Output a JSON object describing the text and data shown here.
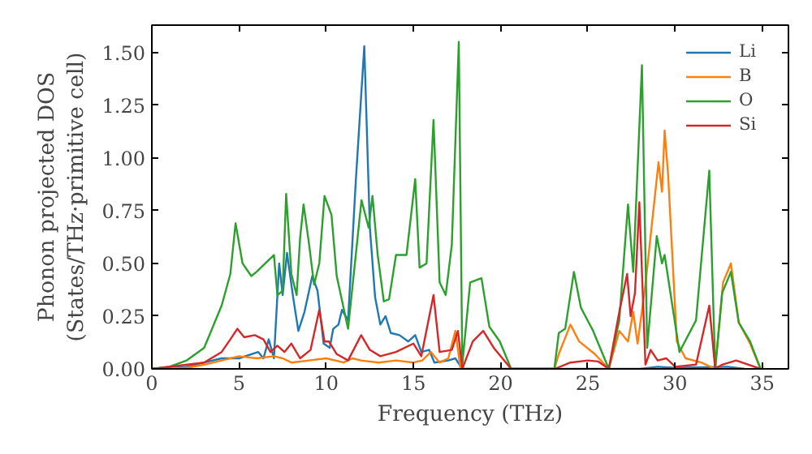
{
  "chart_data": {
    "type": "line",
    "xlabel": "Frequency (THz)",
    "ylabel": "Phonon projected DOS\n(States/THz·primitive cell)",
    "xlim": [
      0,
      36.5
    ],
    "ylim": [
      0,
      1.63
    ],
    "xticks": [
      0,
      5,
      10,
      15,
      20,
      25,
      30,
      35
    ],
    "yticks": [
      {
        "value": 0,
        "label": "0.00"
      },
      {
        "value": 0.25,
        "label": "0.25"
      },
      {
        "value": 0.5,
        "label": "0.50"
      },
      {
        "value": 0.75,
        "label": "0.75"
      },
      {
        "value": 1.0,
        "label": "1.00"
      },
      {
        "value": 1.25,
        "label": "1.25"
      },
      {
        "value": 1.5,
        "label": "1.50"
      }
    ],
    "legend": "top right",
    "grid": false,
    "line_style": "solid",
    "marker": "none",
    "series": [
      {
        "name": "Li",
        "color": "#1f77b4",
        "x": [
          0,
          2,
          3,
          4,
          5,
          6.1,
          6.4,
          6.7,
          7.0,
          7.3,
          7.5,
          7.75,
          8.1,
          8.4,
          8.75,
          9.2,
          9.5,
          9.85,
          10.2,
          10.4,
          10.7,
          10.9,
          11.25,
          11.7,
          12.18,
          12.5,
          12.8,
          13.1,
          13.4,
          13.7,
          14.2,
          14.7,
          15.1,
          15.45,
          15.9,
          16.2,
          17.0,
          17.4,
          17.8,
          28,
          29,
          30,
          33,
          34
        ],
        "values": [
          0,
          0.01,
          0.03,
          0.05,
          0.05,
          0.08,
          0.05,
          0.14,
          0.05,
          0.5,
          0.35,
          0.55,
          0.34,
          0.18,
          0.27,
          0.44,
          0.37,
          0.12,
          0.1,
          0.19,
          0.21,
          0.28,
          0.23,
          0.9,
          1.53,
          0.67,
          0.34,
          0.21,
          0.25,
          0.17,
          0.16,
          0.13,
          0.16,
          0.08,
          0.09,
          0.03,
          0.04,
          0.05,
          0,
          0,
          0.01,
          0.005,
          0.01,
          0
        ]
      },
      {
        "name": "B",
        "color": "#ff7f0e",
        "x": [
          0,
          2,
          3,
          4,
          5,
          6,
          7,
          7.5,
          8,
          9,
          10,
          11,
          11.5,
          12,
          13,
          14,
          15,
          15.5,
          16,
          16.5,
          17,
          17.4,
          17.7,
          23.08,
          23.33,
          24.0,
          24.5,
          25.4,
          26.2,
          26.8,
          27.3,
          27.6,
          27.85,
          28.3,
          29.05,
          29.25,
          29.4,
          29.6,
          30.1,
          30.6,
          31.5,
          32.3,
          32.75,
          33.2,
          33.65,
          34.3,
          34.9
        ],
        "values": [
          0,
          0.005,
          0.02,
          0.04,
          0.06,
          0.05,
          0.06,
          0.05,
          0.03,
          0.04,
          0.05,
          0.03,
          0.05,
          0.04,
          0.03,
          0.04,
          0.03,
          0.04,
          0.08,
          0.03,
          0.05,
          0.18,
          0,
          0,
          0.07,
          0.21,
          0.13,
          0.07,
          0,
          0.18,
          0.13,
          0.27,
          0.12,
          0.4,
          0.98,
          0.84,
          1.13,
          0.92,
          0.13,
          0.05,
          0.03,
          0,
          0.41,
          0.5,
          0.22,
          0.12,
          0
        ]
      },
      {
        "name": "O",
        "color": "#2ca02c",
        "x": [
          0,
          1,
          2,
          3,
          3.5,
          4,
          4.5,
          4.8,
          5.2,
          5.7,
          6,
          6.5,
          7,
          7.2,
          7.5,
          7.7,
          8,
          8.3,
          8.5,
          8.7,
          9,
          9.3,
          9.6,
          9.9,
          10.3,
          10.6,
          11.25,
          12.02,
          12.43,
          12.65,
          12.95,
          13.3,
          13.6,
          14.0,
          14.6,
          15.1,
          15.35,
          15.75,
          16.15,
          16.5,
          16.85,
          17.2,
          17.6,
          17.8,
          18.25,
          18.9,
          19.35,
          19.95,
          20.6,
          23.08,
          23.33,
          23.7,
          24.2,
          24.6,
          25.3,
          26.2,
          26.8,
          27.3,
          27.6,
          28.1,
          28.4,
          28.95,
          29.25,
          29.4,
          30.25,
          31.2,
          31.96,
          32.3,
          32.7,
          33.2,
          33.65,
          34.3,
          34.9
        ],
        "values": [
          0,
          0.01,
          0.04,
          0.1,
          0.2,
          0.3,
          0.45,
          0.69,
          0.5,
          0.44,
          0.46,
          0.5,
          0.54,
          0.35,
          0.37,
          0.83,
          0.45,
          0.35,
          0.62,
          0.78,
          0.6,
          0.4,
          0.5,
          0.82,
          0.73,
          0.44,
          0.19,
          0.8,
          0.67,
          0.82,
          0.54,
          0.32,
          0.33,
          0.54,
          0.54,
          0.9,
          0.48,
          0.5,
          1.18,
          0.41,
          0.35,
          0.59,
          1.55,
          0.02,
          0.41,
          0.43,
          0.2,
          0.13,
          0,
          0,
          0.17,
          0.19,
          0.46,
          0.29,
          0.18,
          0,
          0.23,
          0.78,
          0.46,
          1.44,
          0.1,
          0.63,
          0.5,
          0.54,
          0.08,
          0.23,
          0.94,
          0,
          0.36,
          0.46,
          0.22,
          0.13,
          0
        ]
      },
      {
        "name": "Si",
        "color": "#d62728",
        "x": [
          0,
          3,
          4,
          4.5,
          4.9,
          5.3,
          5.9,
          6.4,
          6.8,
          7.2,
          7.6,
          8.0,
          8.5,
          9.1,
          9.6,
          9.9,
          10.15,
          10.6,
          11.25,
          12.0,
          12.5,
          13.1,
          14.0,
          15.0,
          15.45,
          16.15,
          16.5,
          17.2,
          17.55,
          17.8,
          18.4,
          19.0,
          19.6,
          20.6,
          23.1,
          24,
          25,
          25.6,
          26.2,
          26.8,
          27.25,
          27.45,
          27.7,
          27.95,
          28.3,
          28.6,
          29.0,
          29.5,
          30,
          31.2,
          31.96,
          32.3,
          32.7,
          33.5,
          34.9
        ],
        "values": [
          0,
          0.03,
          0.08,
          0.14,
          0.19,
          0.15,
          0.16,
          0.14,
          0.08,
          0.11,
          0.08,
          0.12,
          0.05,
          0.09,
          0.28,
          0.13,
          0.13,
          0.07,
          0.04,
          0.16,
          0.09,
          0.06,
          0.08,
          0.12,
          0.06,
          0.35,
          0.08,
          0.09,
          0.18,
          0,
          0.13,
          0.18,
          0.1,
          0,
          0,
          0.03,
          0.04,
          0.035,
          0,
          0.27,
          0.45,
          0.25,
          0.36,
          0.79,
          0.02,
          0.09,
          0.04,
          0.05,
          0.01,
          0.02,
          0.3,
          0,
          0.02,
          0.04,
          0
        ]
      }
    ]
  }
}
